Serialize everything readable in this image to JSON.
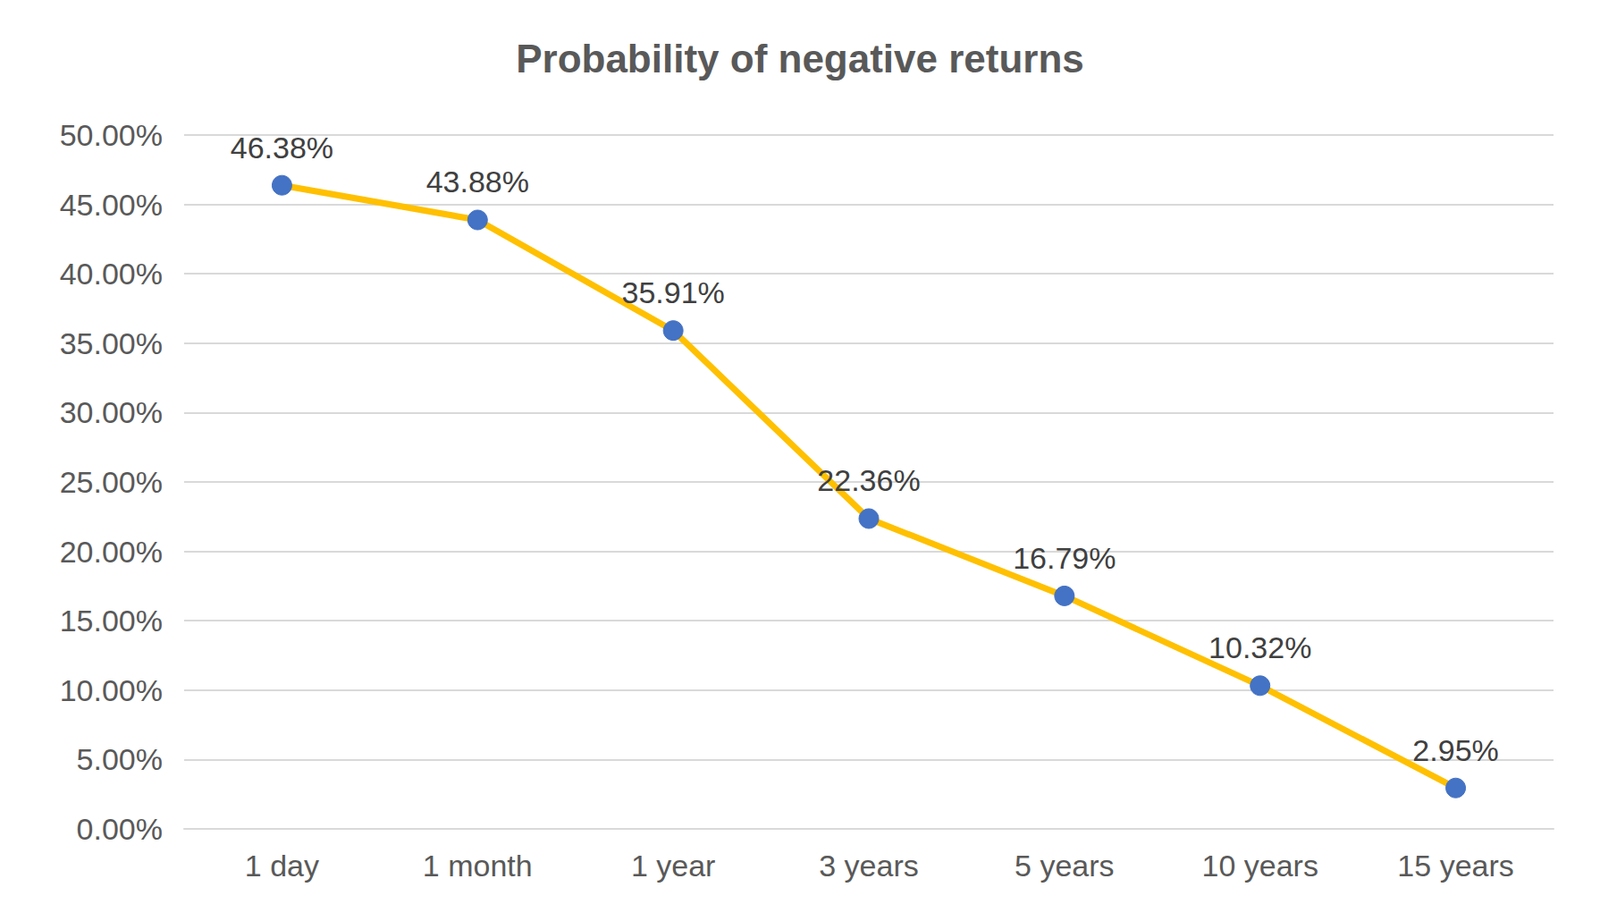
{
  "chart_data": {
    "type": "line",
    "title": "Probability of negative returns",
    "categories": [
      "1 day",
      "1 month",
      "1 year",
      "3 years",
      "5 years",
      "10 years",
      "15 years"
    ],
    "values": [
      46.38,
      43.88,
      35.91,
      22.36,
      16.79,
      10.32,
      2.95
    ],
    "value_labels": [
      "46.38%",
      "43.88%",
      "35.91%",
      "22.36%",
      "16.79%",
      "10.32%",
      "2.95%"
    ],
    "color": "#ffc000",
    "marker": "circle",
    "data_labels": true,
    "ylim": [
      0,
      50
    ],
    "yticks": [
      {
        "value": 0,
        "label": "0.00%"
      },
      {
        "value": 5,
        "label": "5.00%"
      },
      {
        "value": 10,
        "label": "10.00%"
      },
      {
        "value": 15,
        "label": "15.00%"
      },
      {
        "value": 20,
        "label": "20.00%"
      },
      {
        "value": 25,
        "label": "25.00%"
      },
      {
        "value": 30,
        "label": "30.00%"
      },
      {
        "value": 35,
        "label": "35.00%"
      },
      {
        "value": 40,
        "label": "40.00%"
      },
      {
        "value": 45,
        "label": "45.00%"
      },
      {
        "value": 50,
        "label": "50.00%"
      }
    ],
    "grid": true
  }
}
